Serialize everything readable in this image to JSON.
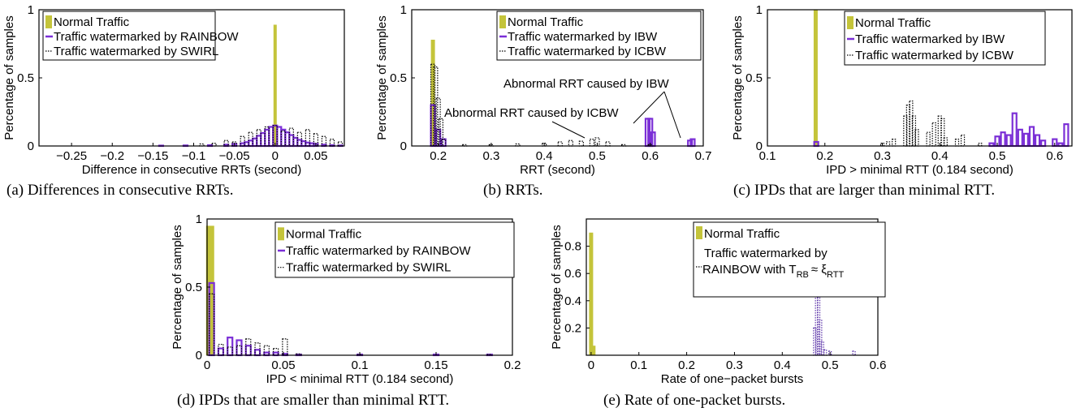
{
  "colors": {
    "normal": "#c4c43a",
    "purple": "#7b2fd6",
    "purple_dark": "#5a32a8",
    "dotted": "#000000"
  },
  "panels": [
    {
      "caption": "(a) Differences in consecutive RRTs.",
      "xlabel": "Difference in consecutive RRTs (second)",
      "ylabel": "Percentage of samples",
      "xticks": [
        "−0.25",
        "−0.2",
        "−0.15",
        "−0.1",
        "−0.05",
        "0",
        "0.05"
      ],
      "yticks": [
        "0",
        "0.5",
        "1"
      ],
      "legend": [
        "Normal Traffic",
        "Traffic watermarked by RAINBOW",
        "Traffic watermarked by SWIRL"
      ]
    },
    {
      "caption": "(b) RRTs.",
      "xlabel": "RRT (second)",
      "ylabel": "Percentage of samples",
      "xticks": [
        "0.2",
        "0.3",
        "0.4",
        "0.5",
        "0.6",
        "0.7"
      ],
      "yticks": [
        "0",
        "0.5",
        "1"
      ],
      "legend": [
        "Normal Traffic",
        "Traffic watermarked by IBW",
        "Traffic watermarked by ICBW"
      ],
      "annotations": [
        "Abnormal RRT caused by IBW",
        "Abnormal RRT caused by ICBW"
      ]
    },
    {
      "caption": "(c) IPDs that are larger than minimal RTT.",
      "xlabel": "IPD > minimal RTT (0.184 second)",
      "ylabel": "Percentage of samples",
      "xticks": [
        "0.1",
        "0.2",
        "0.3",
        "0.4",
        "0.5",
        "0.6"
      ],
      "yticks": [
        "0",
        "0.5",
        "1"
      ],
      "legend": [
        "Normal Traffic",
        "Traffic watermarked by IBW",
        "Traffic watermarked by ICBW"
      ]
    },
    {
      "caption": "(d) IPDs that are smaller than minimal RTT.",
      "xlabel": "IPD < minimal RTT (0.184 second)",
      "ylabel": "Percentage of samples",
      "xticks": [
        "0",
        "0.05",
        "0.1",
        "0.15",
        "0.2"
      ],
      "yticks": [
        "0",
        "0.5",
        "1"
      ],
      "legend": [
        "Normal Traffic",
        "Traffic watermarked by RAINBOW",
        "Traffic watermarked by SWIRL"
      ]
    },
    {
      "caption": "(e) Rate of one-packet bursts.",
      "xlabel": "Rate of one−packet bursts",
      "ylabel": "Percentage of samples",
      "xticks": [
        "0",
        "0.1",
        "0.2",
        "0.3",
        "0.4",
        "0.5",
        "0.6"
      ],
      "yticks": [
        "0.2",
        "0.4",
        "0.6",
        "0.8"
      ],
      "legend": [
        "Normal Traffic",
        "Traffic watermarked by",
        "RAINBOW with T",
        "RB",
        "≈ ξ",
        "RTT"
      ]
    }
  ],
  "chart_data": [
    {
      "type": "bar",
      "xlim": [
        -0.29,
        0.085
      ],
      "ylim": [
        0,
        1
      ],
      "grid": false,
      "legend_position": "top-left",
      "series": [
        {
          "name": "Normal Traffic",
          "style": "bar",
          "x": [
            0.0
          ],
          "y": [
            0.89
          ]
        },
        {
          "name": "Traffic watermarked by RAINBOW",
          "style": "step",
          "x": [
            -0.14,
            -0.11,
            -0.08,
            -0.06,
            -0.05,
            -0.04,
            -0.035,
            -0.03,
            -0.025,
            -0.02,
            -0.015,
            -0.01,
            -0.005,
            0,
            0.005,
            0.01,
            0.015,
            0.02,
            0.025,
            0.03,
            0.035,
            0.04,
            0.045,
            0.05,
            0.06,
            0.07,
            0.08
          ],
          "y": [
            0.003,
            0.004,
            0.006,
            0.01,
            0.015,
            0.02,
            0.028,
            0.04,
            0.055,
            0.075,
            0.095,
            0.12,
            0.14,
            0.15,
            0.14,
            0.12,
            0.1,
            0.08,
            0.06,
            0.045,
            0.035,
            0.025,
            0.02,
            0.015,
            0.01,
            0.006,
            0.004
          ]
        },
        {
          "name": "Traffic watermarked by SWIRL",
          "style": "dotted",
          "x": [
            -0.09,
            -0.075,
            -0.06,
            -0.05,
            -0.04,
            -0.03,
            -0.02,
            -0.01,
            0,
            0.01,
            0.02,
            0.03,
            0.04,
            0.05,
            0.06,
            0.07,
            0.08
          ],
          "y": [
            0.015,
            0.02,
            0.04,
            0.03,
            0.07,
            0.1,
            0.12,
            0.14,
            0.15,
            0.11,
            0.13,
            0.1,
            0.12,
            0.09,
            0.07,
            0.05,
            0.03
          ]
        }
      ]
    },
    {
      "type": "bar",
      "xlim": [
        0.15,
        0.7
      ],
      "ylim": [
        0,
        1
      ],
      "grid": false,
      "legend_position": "top-right",
      "series": [
        {
          "name": "Normal Traffic",
          "style": "bar",
          "x": [
            0.19
          ],
          "y": [
            0.78
          ]
        },
        {
          "name": "Traffic watermarked by IBW",
          "style": "step",
          "x": [
            0.19,
            0.2,
            0.21,
            0.595,
            0.6,
            0.605,
            0.675,
            0.68
          ],
          "y": [
            0.3,
            0.12,
            0.05,
            0.2,
            0.2,
            0.1,
            0.04,
            0.05
          ]
        },
        {
          "name": "Traffic watermarked by ICBW",
          "style": "dotted",
          "x": [
            0.19,
            0.195,
            0.2,
            0.205,
            0.21,
            0.25,
            0.3,
            0.35,
            0.4,
            0.43,
            0.45,
            0.47,
            0.49,
            0.5,
            0.52,
            0.55,
            0.6
          ],
          "y": [
            0.6,
            0.58,
            0.35,
            0.2,
            0.05,
            0.01,
            0.01,
            0.015,
            0.02,
            0.03,
            0.04,
            0.035,
            0.05,
            0.06,
            0.03,
            0.01,
            0.01
          ]
        }
      ]
    },
    {
      "type": "bar",
      "xlim": [
        0.1,
        0.63
      ],
      "ylim": [
        0,
        1
      ],
      "grid": false,
      "legend_position": "top-right",
      "series": [
        {
          "name": "Normal Traffic",
          "style": "bar",
          "x": [
            0.184
          ],
          "y": [
            1.0
          ]
        },
        {
          "name": "Traffic watermarked by IBW",
          "style": "step",
          "x": [
            0.185,
            0.49,
            0.5,
            0.51,
            0.52,
            0.53,
            0.54,
            0.55,
            0.56,
            0.57,
            0.58,
            0.6,
            0.61,
            0.62
          ],
          "y": [
            0.03,
            0.02,
            0.07,
            0.1,
            0.08,
            0.24,
            0.12,
            0.09,
            0.14,
            0.08,
            0.04,
            0.05,
            0.02,
            0.16
          ]
        },
        {
          "name": "Traffic watermarked by ICBW",
          "style": "dotted",
          "x": [
            0.3,
            0.31,
            0.32,
            0.34,
            0.345,
            0.35,
            0.355,
            0.36,
            0.38,
            0.39,
            0.4,
            0.405,
            0.41,
            0.43,
            0.44,
            0.47
          ],
          "y": [
            0.02,
            0.03,
            0.05,
            0.22,
            0.3,
            0.33,
            0.22,
            0.12,
            0.1,
            0.17,
            0.22,
            0.2,
            0.06,
            0.05,
            0.08,
            0.02
          ]
        }
      ]
    },
    {
      "type": "bar",
      "xlim": [
        0,
        0.2
      ],
      "ylim": [
        0,
        1
      ],
      "grid": false,
      "legend_position": "top-right",
      "series": [
        {
          "name": "Normal Traffic",
          "style": "bar",
          "x": [
            0.002
          ],
          "y": [
            0.95
          ]
        },
        {
          "name": "Traffic watermarked by RAINBOW",
          "style": "step",
          "x": [
            0.003,
            0.009,
            0.015,
            0.021,
            0.027,
            0.033,
            0.039,
            0.045,
            0.051,
            0.06,
            0.1,
            0.15,
            0.185
          ],
          "y": [
            0.53,
            0.05,
            0.13,
            0.11,
            0.07,
            0.04,
            0.02,
            0.02,
            0.01,
            0.005,
            0.005,
            0.005,
            0.005
          ]
        },
        {
          "name": "Traffic watermarked by SWIRL",
          "style": "dotted",
          "x": [
            0.003,
            0.009,
            0.015,
            0.021,
            0.027,
            0.033,
            0.039,
            0.045,
            0.051,
            0.06,
            0.1,
            0.185
          ],
          "y": [
            0.45,
            0.08,
            0.06,
            0.07,
            0.12,
            0.09,
            0.07,
            0.05,
            0.12,
            0.01,
            0.005,
            0.005
          ]
        }
      ]
    },
    {
      "type": "bar",
      "xlim": [
        -0.01,
        0.6
      ],
      "ylim": [
        0,
        1
      ],
      "grid": false,
      "legend_position": "top-right",
      "series": [
        {
          "name": "Normal Traffic",
          "style": "bar",
          "x": [
            0.0,
            0.005
          ],
          "y": [
            0.9,
            0.07
          ]
        },
        {
          "name": "Traffic watermarked by RAINBOW with T_RB ≈ ξ_RTT",
          "style": "dotted",
          "x": [
            0.468,
            0.472,
            0.476,
            0.48,
            0.484,
            0.49,
            0.5,
            0.55
          ],
          "y": [
            0.2,
            0.48,
            0.46,
            0.26,
            0.1,
            0.04,
            0.03,
            0.03
          ]
        }
      ]
    }
  ]
}
